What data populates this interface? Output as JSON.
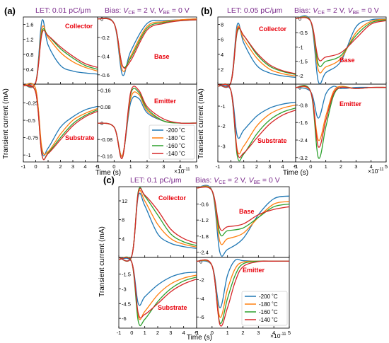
{
  "panels": [
    {
      "letter": "(a)",
      "let_label": "LET: 0.01 pC/μm"
    },
    {
      "letter": "(b)",
      "let_label": "LET: 0.05 pC/μm"
    },
    {
      "letter": "(c)",
      "let_label": "LET: 0.1 pC/μm"
    }
  ],
  "bias_label": {
    "prefix": "Bias: ",
    "v": "V",
    "ce": "CE",
    "mid": " = 2 V, ",
    "be": "BE",
    "suffix": " = 0 V"
  },
  "ylabel": "Transient current (mA)",
  "xlabel": "Time (s)",
  "x_multiplier": {
    "base": "×10",
    "exp": "-11"
  },
  "colors": {
    "-200": "#1f77b4",
    "-180": "#ff7f0e",
    "-160": "#2ca02c",
    "-140": "#d62728",
    "title": "#7b2c8c",
    "label": "#e8000b"
  },
  "legend": [
    "-200 ˚C",
    "-180 ˚C",
    "-160 ˚C",
    "-140 ˚C"
  ],
  "chart_data": [
    {
      "type": "line",
      "panel": "(a)",
      "label": "Collector",
      "x": [
        -1,
        0,
        0.5,
        1,
        2,
        3,
        4,
        5
      ],
      "xlim": [
        -1,
        5
      ],
      "ylim": [
        0,
        1.8
      ],
      "yticks": [
        0.4,
        0.8,
        1.2,
        1.6
      ],
      "xticks": [
        -1,
        0,
        1,
        2,
        3,
        4,
        5
      ],
      "series": [
        {
          "temp": "-200",
          "y": [
            0,
            0.05,
            1.7,
            1.05,
            0.5,
            0.35,
            0.3,
            0.27
          ]
        },
        {
          "temp": "-180",
          "y": [
            0,
            0.05,
            1.5,
            1.25,
            0.85,
            0.6,
            0.45,
            0.35
          ]
        },
        {
          "temp": "-160",
          "y": [
            0,
            0.05,
            1.4,
            1.3,
            0.95,
            0.7,
            0.5,
            0.4
          ]
        },
        {
          "temp": "-140",
          "y": [
            0,
            0.05,
            1.35,
            1.3,
            1.0,
            0.75,
            0.55,
            0.45
          ]
        }
      ]
    },
    {
      "type": "line",
      "panel": "(a)",
      "label": "Base",
      "x": [
        -1,
        0,
        0.5,
        1,
        2,
        3,
        4,
        5
      ],
      "xlim": [
        -1,
        5
      ],
      "ylim": [
        -0.7,
        0.02
      ],
      "yticks": [
        0,
        -0.2,
        -0.4,
        -0.6
      ],
      "xticks": [
        -1,
        0,
        1,
        2,
        3,
        4,
        5
      ],
      "series": [
        {
          "temp": "-200",
          "y": [
            0,
            -0.05,
            -0.6,
            -0.35,
            -0.05,
            -0.02,
            -0.01,
            0
          ]
        },
        {
          "temp": "-180",
          "y": [
            0,
            -0.05,
            -0.55,
            -0.4,
            -0.08,
            -0.03,
            -0.01,
            0
          ]
        },
        {
          "temp": "-160",
          "y": [
            0,
            -0.05,
            -0.5,
            -0.42,
            -0.1,
            -0.04,
            -0.02,
            -0.01
          ]
        },
        {
          "temp": "-140",
          "y": [
            0,
            -0.05,
            -0.5,
            -0.45,
            -0.12,
            -0.05,
            -0.02,
            -0.01
          ]
        }
      ]
    },
    {
      "type": "line",
      "panel": "(a)",
      "label": "Substrate",
      "x": [
        -1,
        0,
        0.5,
        1,
        2,
        3,
        4,
        5
      ],
      "xlim": [
        -1,
        5
      ],
      "ylim": [
        -1.1,
        0.02
      ],
      "yticks": [
        -0.25,
        -0.5,
        -0.75,
        -1.0
      ],
      "xticks": [
        -1,
        0,
        1,
        2,
        3,
        4,
        5
      ],
      "series": [
        {
          "temp": "-200",
          "y": [
            0,
            -0.05,
            -0.95,
            -0.9,
            -0.6,
            -0.45,
            -0.35,
            -0.3
          ]
        },
        {
          "temp": "-180",
          "y": [
            0,
            -0.05,
            -0.9,
            -0.95,
            -0.7,
            -0.5,
            -0.4,
            -0.33
          ]
        },
        {
          "temp": "-160",
          "y": [
            0,
            -0.1,
            -1.0,
            -0.97,
            -0.75,
            -0.55,
            -0.43,
            -0.35
          ]
        },
        {
          "temp": "-140",
          "y": [
            0,
            -0.1,
            -1.0,
            -0.98,
            -0.78,
            -0.58,
            -0.45,
            -0.37
          ]
        }
      ]
    },
    {
      "type": "line",
      "panel": "(a)",
      "label": "Emitter",
      "x": [
        -1,
        0,
        0.5,
        1,
        1.5,
        2,
        3,
        4,
        5
      ],
      "xlim": [
        -1,
        5
      ],
      "ylim": [
        -0.19,
        0.19
      ],
      "yticks": [
        0.16,
        0.08,
        0,
        -0.08,
        -0.16
      ],
      "xticks": [
        -1,
        0,
        1,
        2,
        3,
        4,
        5
      ],
      "series": [
        {
          "temp": "-200",
          "y": [
            0,
            -0.02,
            -0.16,
            0.1,
            0.12,
            0.05,
            0.01,
            0,
            0
          ]
        },
        {
          "temp": "-180",
          "y": [
            0,
            -0.02,
            -0.16,
            0.12,
            0.14,
            0.06,
            0.01,
            0,
            0
          ]
        },
        {
          "temp": "-160",
          "y": [
            0,
            -0.02,
            -0.17,
            0.14,
            0.15,
            0.07,
            0.01,
            0,
            0
          ]
        },
        {
          "temp": "-140",
          "y": [
            0,
            -0.02,
            -0.17,
            0.15,
            0.16,
            0.08,
            0.02,
            0,
            0
          ]
        }
      ]
    },
    {
      "type": "line",
      "panel": "(b)",
      "label": "Collector",
      "x": [
        -1,
        0,
        0.5,
        1,
        2,
        3,
        4,
        5
      ],
      "xlim": [
        -1,
        5
      ],
      "ylim": [
        0,
        9
      ],
      "yticks": [
        2,
        4,
        6,
        8
      ],
      "xticks": [
        -1,
        0,
        1,
        2,
        3,
        4,
        5
      ],
      "series": [
        {
          "temp": "-200",
          "y": [
            0,
            0.2,
            8.0,
            5.5,
            2.5,
            1.5,
            1.1,
            0.9
          ]
        },
        {
          "temp": "-180",
          "y": [
            0,
            0.2,
            7.5,
            6.0,
            3.5,
            2.0,
            1.4,
            1.1
          ]
        },
        {
          "temp": "-160",
          "y": [
            0,
            0.2,
            7.0,
            6.5,
            4.0,
            2.4,
            1.7,
            1.3
          ]
        },
        {
          "temp": "-140",
          "y": [
            0,
            0.2,
            7.2,
            6.5,
            4.2,
            2.6,
            1.8,
            1.4
          ]
        }
      ]
    },
    {
      "type": "line",
      "panel": "(b)",
      "label": "Base",
      "x": [
        -1,
        0,
        0.5,
        1,
        2,
        3,
        4,
        5
      ],
      "xlim": [
        -1,
        5
      ],
      "ylim": [
        -2.3,
        0.05
      ],
      "yticks": [
        0,
        -0.5,
        -1.0,
        -1.5,
        -2.0
      ],
      "xticks": [
        -1,
        0,
        1,
        2,
        3,
        4,
        5
      ],
      "series": [
        {
          "temp": "-200",
          "y": [
            0,
            -0.1,
            -2.2,
            -1.9,
            -1.5,
            -0.3,
            -0.05,
            -0.02
          ]
        },
        {
          "temp": "-180",
          "y": [
            0,
            -0.1,
            -1.8,
            -1.7,
            -1.4,
            -0.5,
            -0.1,
            -0.03
          ]
        },
        {
          "temp": "-160",
          "y": [
            0,
            -0.1,
            -1.6,
            -1.5,
            -1.3,
            -0.6,
            -0.15,
            -0.05
          ]
        },
        {
          "temp": "-140",
          "y": [
            0,
            -0.1,
            -1.4,
            -1.35,
            -1.2,
            -0.7,
            -0.2,
            -0.08
          ]
        }
      ]
    },
    {
      "type": "line",
      "panel": "(b)",
      "label": "Substrate",
      "x": [
        -1,
        0,
        0.5,
        1,
        2,
        3,
        4,
        5
      ],
      "xlim": [
        -1,
        5
      ],
      "ylim": [
        -3.8,
        0.1
      ],
      "yticks": [
        -1,
        -2,
        -3
      ],
      "xticks": [
        -1,
        0,
        1,
        2,
        3,
        4,
        5
      ],
      "series": [
        {
          "temp": "-200",
          "y": [
            0,
            -0.2,
            -2.5,
            -2.2,
            -1.5,
            -1.1,
            -0.9,
            -0.8
          ]
        },
        {
          "temp": "-180",
          "y": [
            0,
            -0.2,
            -3.2,
            -3.0,
            -2.0,
            -1.4,
            -1.1,
            -0.95
          ]
        },
        {
          "temp": "-160",
          "y": [
            0,
            -0.2,
            -3.5,
            -3.4,
            -2.4,
            -1.7,
            -1.3,
            -1.1
          ]
        },
        {
          "temp": "-140",
          "y": [
            0,
            -0.2,
            -3.3,
            -3.35,
            -2.6,
            -1.9,
            -1.45,
            -1.2
          ]
        }
      ]
    },
    {
      "type": "line",
      "panel": "(b)",
      "label": "Emitter",
      "x": [
        -1,
        0,
        0.5,
        1,
        1.5,
        2,
        3,
        4,
        5
      ],
      "xlim": [
        -1,
        5
      ],
      "ylim": [
        -3.4,
        0.15
      ],
      "yticks": [
        0,
        -0.8,
        -1.6,
        -2.4,
        -3.2
      ],
      "xticks": [
        -1,
        0,
        1,
        2,
        3,
        4,
        5
      ],
      "series": [
        {
          "temp": "-200",
          "y": [
            0,
            -0.2,
            -1.4,
            -0.3,
            0.05,
            -0.05,
            0,
            0,
            0
          ]
        },
        {
          "temp": "-180",
          "y": [
            0,
            -0.2,
            -2.4,
            -1.3,
            -0.2,
            0.05,
            -0.05,
            0,
            0
          ]
        },
        {
          "temp": "-160",
          "y": [
            0,
            -0.2,
            -3.2,
            -1.8,
            -0.4,
            0,
            -0.05,
            0,
            0
          ]
        },
        {
          "temp": "-140",
          "y": [
            0,
            -0.2,
            -2.7,
            -1.5,
            -0.3,
            0,
            -0.05,
            0,
            0
          ]
        }
      ]
    },
    {
      "type": "line",
      "panel": "(c)",
      "label": "Collector",
      "x": [
        -1,
        0,
        0.5,
        1,
        2,
        3,
        4,
        5
      ],
      "xlim": [
        -1,
        5
      ],
      "ylim": [
        0,
        15
      ],
      "yticks": [
        4,
        8,
        12
      ],
      "xticks": [
        -1,
        0,
        1,
        2,
        3,
        4,
        5
      ],
      "series": [
        {
          "temp": "-200",
          "y": [
            0,
            0.3,
            13.0,
            11.0,
            5.0,
            3.0,
            2.3,
            1.9
          ]
        },
        {
          "temp": "-180",
          "y": [
            0,
            0.3,
            13.5,
            12.0,
            7.0,
            4.0,
            2.8,
            2.2
          ]
        },
        {
          "temp": "-160",
          "y": [
            0,
            0.3,
            14.0,
            13.0,
            9.0,
            5.0,
            3.3,
            2.5
          ]
        },
        {
          "temp": "-140",
          "y": [
            0,
            0.3,
            13.7,
            13.2,
            10.0,
            6.0,
            4.0,
            3.0
          ]
        }
      ]
    },
    {
      "type": "line",
      "panel": "(c)",
      "label": "Base",
      "x": [
        -1,
        0,
        0.5,
        1,
        2,
        3,
        4,
        5
      ],
      "xlim": [
        -1,
        5
      ],
      "ylim": [
        -2.6,
        0.05
      ],
      "yticks": [
        -0.6,
        -1.2,
        -1.8,
        -2.4
      ],
      "xticks": [
        -1,
        0,
        1,
        2,
        3,
        4,
        5
      ],
      "series": [
        {
          "temp": "-200",
          "y": [
            0,
            -0.1,
            -2.4,
            -2.3,
            -1.9,
            -1.0,
            -0.4,
            -0.3
          ]
        },
        {
          "temp": "-180",
          "y": [
            0,
            -0.1,
            -2.0,
            -1.9,
            -1.7,
            -1.1,
            -0.6,
            -0.5
          ]
        },
        {
          "temp": "-160",
          "y": [
            0,
            -0.1,
            -1.7,
            -1.6,
            -1.5,
            -1.1,
            -0.7,
            -0.6
          ]
        },
        {
          "temp": "-140",
          "y": [
            0,
            -0.1,
            -1.5,
            -1.45,
            -1.35,
            -1.0,
            -0.8,
            -0.7
          ]
        }
      ]
    },
    {
      "type": "line",
      "panel": "(c)",
      "label": "Substrate",
      "x": [
        -1,
        0,
        0.5,
        1,
        2,
        3,
        4,
        5
      ],
      "xlim": [
        -1,
        5
      ],
      "ylim": [
        -7.0,
        0.2
      ],
      "yticks": [
        -1.5,
        -3.0,
        -4.5,
        -6.0
      ],
      "xticks": [
        -1,
        0,
        1,
        2,
        3,
        4,
        5
      ],
      "series": [
        {
          "temp": "-200",
          "y": [
            0,
            -0.3,
            -4.5,
            -3.8,
            -2.6,
            -1.8,
            -1.4,
            -1.3
          ]
        },
        {
          "temp": "-180",
          "y": [
            0,
            -0.3,
            -5.8,
            -5.3,
            -3.6,
            -2.5,
            -1.9,
            -1.6
          ]
        },
        {
          "temp": "-160",
          "y": [
            0,
            -0.3,
            -6.3,
            -6.1,
            -4.3,
            -3.0,
            -2.2,
            -1.8
          ]
        },
        {
          "temp": "-140",
          "y": [
            0,
            -0.3,
            -5.5,
            -5.6,
            -4.5,
            -3.3,
            -2.5,
            -2.0
          ]
        }
      ]
    },
    {
      "type": "line",
      "panel": "(c)",
      "label": "Emitter",
      "x": [
        -1,
        0,
        0.5,
        1,
        1.5,
        2,
        3,
        4,
        5
      ],
      "xlim": [
        -1,
        5
      ],
      "ylim": [
        -7.2,
        0.4
      ],
      "yticks": [
        0,
        -2,
        -4,
        -6
      ],
      "xticks": [
        -1,
        0,
        1,
        2,
        3,
        4,
        5
      ],
      "series": [
        {
          "temp": "-200",
          "y": [
            0,
            -0.5,
            -5.0,
            -1.5,
            0.1,
            0.05,
            0,
            0,
            0
          ]
        },
        {
          "temp": "-180",
          "y": [
            0,
            -0.5,
            -6.0,
            -3.0,
            -0.8,
            -0.1,
            0,
            0,
            0
          ]
        },
        {
          "temp": "-160",
          "y": [
            0,
            -0.5,
            -6.6,
            -4.0,
            -1.5,
            -0.3,
            0,
            0,
            0
          ]
        },
        {
          "temp": "-140",
          "y": [
            0,
            -0.5,
            -6.8,
            -5.0,
            -2.2,
            -0.6,
            -0.05,
            0,
            0
          ]
        }
      ]
    }
  ]
}
